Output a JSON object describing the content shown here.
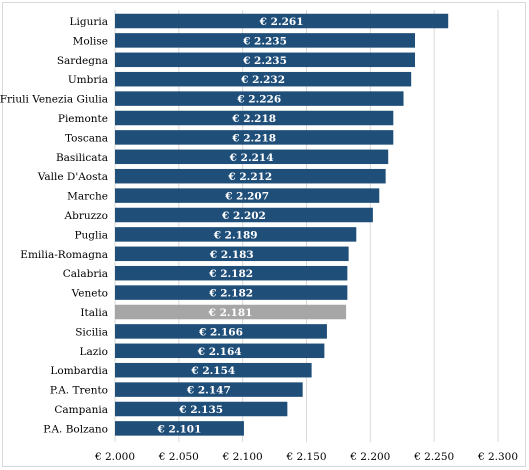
{
  "chart_data": {
    "type": "bar",
    "orientation": "horizontal",
    "categories": [
      "Liguria",
      "Molise",
      "Sardegna",
      "Umbria",
      "Friuli Venezia Giulia",
      "Piemonte",
      "Toscana",
      "Basilicata",
      "Valle D'Aosta",
      "Marche",
      "Abruzzo",
      "Puglia",
      "Emilia-Romagna",
      "Calabria",
      "Veneto",
      "Italia",
      "Sicilia",
      "Lazio",
      "Lombardia",
      "P.A. Trento",
      "Campania",
      "P.A. Bolzano"
    ],
    "values": [
      2261,
      2235,
      2235,
      2232,
      2226,
      2218,
      2218,
      2214,
      2212,
      2207,
      2202,
      2189,
      2183,
      2182,
      2182,
      2181,
      2166,
      2164,
      2154,
      2147,
      2135,
      2101
    ],
    "data_labels": [
      "€ 2.261",
      "€ 2.235",
      "€ 2.235",
      "€ 2.232",
      "€ 2.226",
      "€ 2.218",
      "€ 2.218",
      "€ 2.214",
      "€ 2.212",
      "€ 2.207",
      "€ 2.202",
      "€ 2.189",
      "€ 2.183",
      "€ 2.182",
      "€ 2.182",
      "€ 2.181",
      "€ 2.166",
      "€ 2.164",
      "€ 2.154",
      "€ 2.147",
      "€ 2.135",
      "€ 2.101"
    ],
    "xlim": [
      2000,
      2300
    ],
    "xticks": [
      2000,
      2050,
      2100,
      2150,
      2200,
      2250,
      2300
    ],
    "xtick_labels": [
      "€ 2.000",
      "€ 2.050",
      "€ 2.100",
      "€ 2.150",
      "€ 2.200",
      "€ 2.250",
      "€ 2.300"
    ],
    "grid": true,
    "bar_color": "#1f4e79",
    "highlight_category": "Italia",
    "highlight_color": "#a6a6a6",
    "title": "",
    "xlabel": "",
    "ylabel": ""
  }
}
